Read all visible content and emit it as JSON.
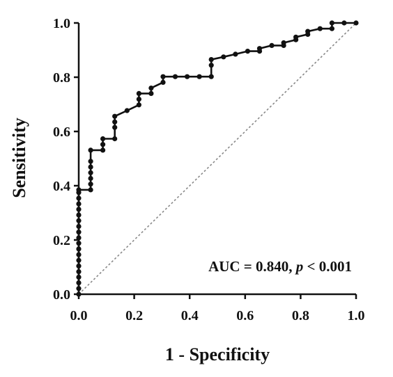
{
  "chart_data": {
    "type": "line",
    "title": "",
    "xlabel": "1 - Specificity",
    "ylabel": "Sensitivity",
    "xlim": [
      0,
      1
    ],
    "ylim": [
      0,
      1
    ],
    "x_ticks": [
      "0.0",
      "0.2",
      "0.4",
      "0.6",
      "0.8",
      "1.0"
    ],
    "y_ticks": [
      "0.0",
      "0.2",
      "0.4",
      "0.6",
      "0.8",
      "1.0"
    ],
    "grid": false,
    "reference_line": {
      "x": [
        0,
        1
      ],
      "y": [
        0,
        1
      ],
      "style": "dashed"
    },
    "annotation": {
      "prefix": "AUC = 0.840, ",
      "p_symbol": "p",
      "suffix": " < 0.001"
    },
    "series": [
      {
        "x": [
          0,
          0,
          0,
          0,
          0,
          0,
          0,
          0,
          0,
          0,
          0,
          0,
          0,
          0,
          0,
          0,
          0,
          0,
          0,
          0,
          0.043,
          0.043,
          0.043,
          0.043,
          0.043,
          0.043,
          0.043,
          0.087,
          0.087,
          0.087,
          0.13,
          0.13,
          0.13,
          0.13,
          0.174,
          0.217,
          0.217,
          0.217,
          0.261,
          0.261,
          0.304,
          0.304,
          0.348,
          0.391,
          0.435,
          0.478,
          0.478,
          0.478,
          0.522,
          0.565,
          0.609,
          0.652,
          0.652,
          0.696,
          0.739,
          0.739,
          0.783,
          0.783,
          0.826,
          0.826,
          0.87,
          0.913,
          0.913,
          0.957,
          1.0
        ],
        "y": [
          0,
          0.021,
          0.042,
          0.063,
          0.083,
          0.104,
          0.125,
          0.146,
          0.167,
          0.188,
          0.208,
          0.229,
          0.25,
          0.271,
          0.292,
          0.313,
          0.333,
          0.354,
          0.375,
          0.385,
          0.385,
          0.406,
          0.427,
          0.448,
          0.469,
          0.49,
          0.531,
          0.531,
          0.552,
          0.573,
          0.573,
          0.615,
          0.635,
          0.656,
          0.677,
          0.698,
          0.719,
          0.74,
          0.74,
          0.76,
          0.781,
          0.802,
          0.802,
          0.802,
          0.802,
          0.802,
          0.844,
          0.865,
          0.875,
          0.885,
          0.896,
          0.896,
          0.906,
          0.917,
          0.917,
          0.927,
          0.938,
          0.948,
          0.958,
          0.969,
          0.979,
          0.979,
          1.0,
          1.0,
          1.0
        ]
      }
    ]
  }
}
